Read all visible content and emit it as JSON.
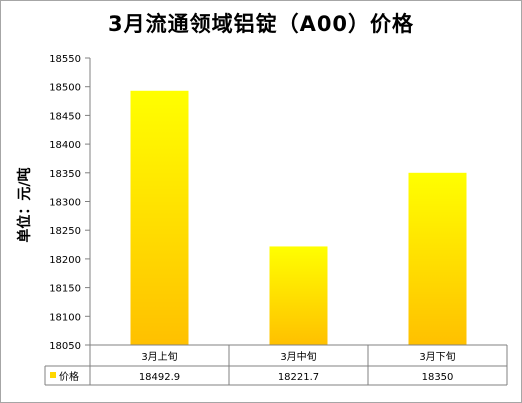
{
  "chart_data": {
    "type": "bar",
    "title": "3月流通领域铝锭（A00）价格",
    "ylabel": "单位：元/吨",
    "categories": [
      "3月上旬",
      "3月中旬",
      "3月下旬"
    ],
    "series": [
      {
        "name": "价格",
        "values": [
          18492.9,
          18221.7,
          18350
        ],
        "value_labels": [
          "18492.9",
          "18221.7",
          "18350"
        ]
      }
    ],
    "ylim": [
      18050,
      18550
    ],
    "yticks": [
      "18550",
      "18500",
      "18450",
      "18400",
      "18350",
      "18300",
      "18250",
      "18200",
      "18150",
      "18100",
      "18050"
    ],
    "grid": false,
    "legend": "data-table",
    "colors": {
      "bar_top": "#ffff00",
      "bar_bottom": "#ffc000",
      "legend_key": "#ffd700"
    }
  }
}
